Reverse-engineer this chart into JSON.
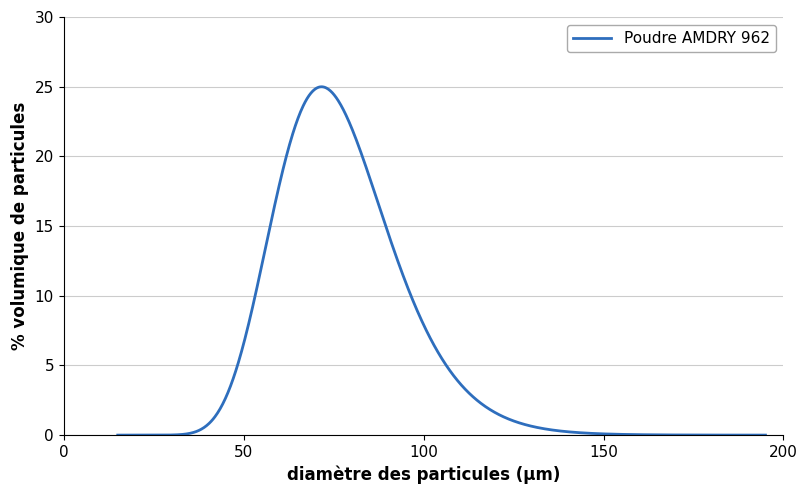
{
  "title": "",
  "xlabel": "diamètre des particules (μm)",
  "ylabel": "% volumique de particules",
  "xlim": [
    0,
    200
  ],
  "ylim": [
    0,
    30
  ],
  "xticks": [
    0,
    50,
    100,
    150,
    200
  ],
  "yticks": [
    0,
    5,
    10,
    15,
    20,
    25,
    30
  ],
  "line_color": "#2E6EBD",
  "line_width": 2.0,
  "legend_label": "Poudre AMDRY 962",
  "background_color": "#ffffff",
  "grid_color": "#cccccc",
  "mu_log": 4.32,
  "sigma_log": 0.22,
  "peak": 25.0,
  "x_start": 15,
  "x_end": 195,
  "num_points": 1000,
  "xlabel_fontsize": 12,
  "ylabel_fontsize": 12,
  "tick_fontsize": 11,
  "legend_fontsize": 11
}
